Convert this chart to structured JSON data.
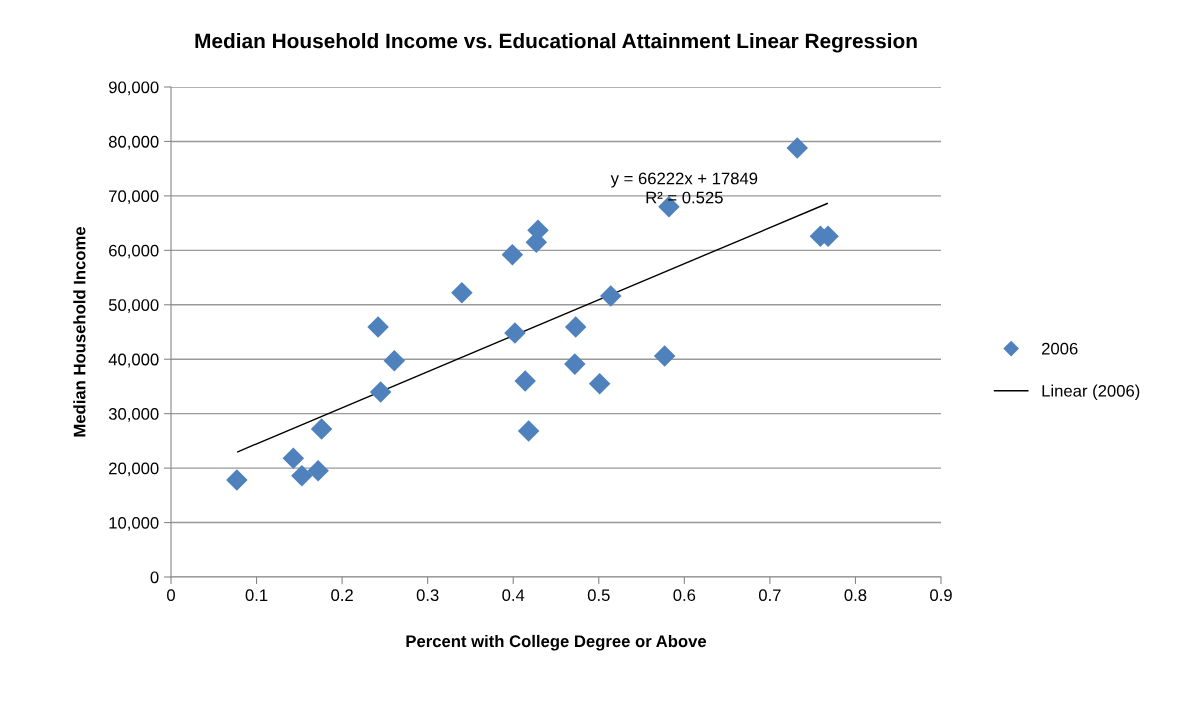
{
  "chart_data": {
    "type": "scatter",
    "title": "Median Household Income vs. Educational Attainment Linear Regression",
    "xlabel": "Percent with College Degree or Above",
    "ylabel": "Median Household Income",
    "series": [
      {
        "name": "2006",
        "color": "#4f81bd",
        "marker": "diamond",
        "x": [
          0.077,
          0.143,
          0.153,
          0.172,
          0.176,
          0.242,
          0.245,
          0.261,
          0.34,
          0.399,
          0.402,
          0.414,
          0.418,
          0.427,
          0.429,
          0.473,
          0.472,
          0.501,
          0.514,
          0.577,
          0.582,
          0.732,
          0.759,
          0.768
        ],
        "values": [
          17800,
          21800,
          18600,
          19500,
          27200,
          45900,
          34000,
          39700,
          52200,
          59200,
          44800,
          36000,
          26800,
          61500,
          63700,
          45900,
          39100,
          35500,
          51600,
          40600,
          68000,
          78800,
          62600,
          62600
        ]
      },
      {
        "name": "Linear (2006)",
        "type": "line",
        "color": "#000000",
        "marker": "none",
        "line_style": "solid",
        "x": [
          0.078,
          0.767
        ],
        "values": [
          23000,
          68600
        ]
      }
    ],
    "annotations": [
      {
        "text": "y = 66222x + 17849\nR² = 0.525",
        "x": 0.6,
        "y": 68000
      }
    ],
    "xlim": [
      0,
      0.9
    ],
    "xticks": [
      0,
      0.1,
      0.2,
      0.3,
      0.4,
      0.5,
      0.6,
      0.7,
      0.8,
      0.9
    ],
    "ylim": [
      0,
      90000
    ],
    "yticks": [
      {
        "value": 0,
        "label": "0"
      },
      {
        "value": 10000,
        "label": "10,000"
      },
      {
        "value": 20000,
        "label": "20,000"
      },
      {
        "value": 30000,
        "label": "30,000"
      },
      {
        "value": 40000,
        "label": "40,000"
      },
      {
        "value": 50000,
        "label": "50,000"
      },
      {
        "value": 60000,
        "label": "60,000"
      },
      {
        "value": 70000,
        "label": "70,000"
      },
      {
        "value": 80000,
        "label": "80,000"
      },
      {
        "value": 90000,
        "label": "90,000"
      }
    ],
    "grid": "y",
    "legend": "right"
  }
}
